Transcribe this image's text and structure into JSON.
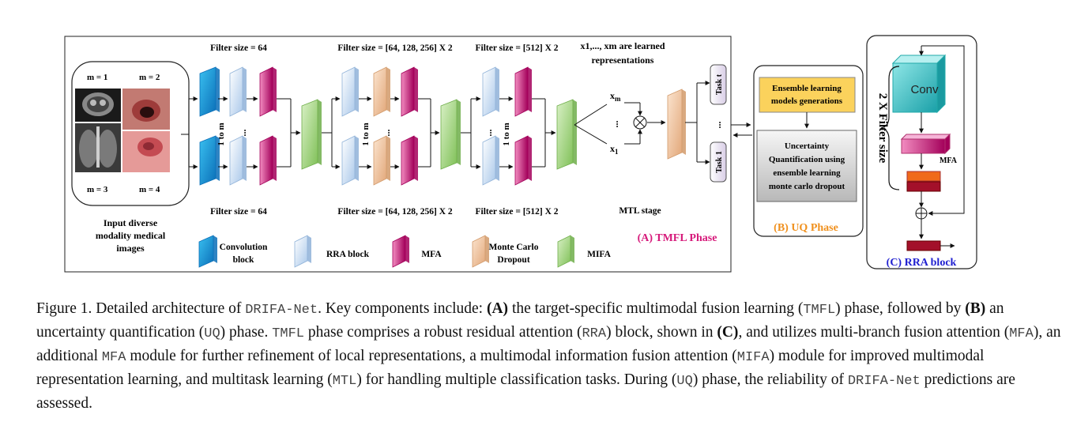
{
  "panel_a": {
    "filter_64_top": "Filter size = 64",
    "filter_64_bottom": "Filter size = 64",
    "filter_mid_top": "Filter size = [64, 128, 256] X 2",
    "filter_mid_bottom": "Filter size = [64, 128, 256] X 2",
    "filter_512_top": "Filter size = [512] X 2",
    "filter_512_bottom": "Filter size = [512] X 2",
    "learned_line1": "x1,..., xm are learned",
    "learned_line2": "representations",
    "xm": "xm",
    "x1": "x1",
    "dots": "...",
    "one_to_m": "1 to m",
    "task_t": "Task t",
    "task_1": "Task 1",
    "mtl_stage": "MTL stage",
    "title": "(A) TMFL Phase",
    "m1": "m = 1",
    "m2": "m = 2",
    "m3": "m = 3",
    "m4": "m = 4",
    "input_line1": "Input diverse",
    "input_line2": "modality medical",
    "input_line3": "images"
  },
  "legend": {
    "conv_line1": "Convolution",
    "conv_line2": "block",
    "rra": "RRA block",
    "mfa": "MFA",
    "mc_line1": "Monte Carlo",
    "mc_line2": "Dropout",
    "mifa": "MIFA"
  },
  "panel_b": {
    "ens_line1": "Ensemble learning",
    "ens_line2": "models generations",
    "uq_line1": "Uncertainty",
    "uq_line2": "Quantification using",
    "uq_line3": "ensemble learning",
    "uq_line4": "monte carlo dropout",
    "title": "(B) UQ Phase"
  },
  "panel_c": {
    "conv": "Conv",
    "mfa": "MFA",
    "filter": "2 X Filter size",
    "title": "(C) RRA block"
  },
  "colors": {
    "conv": "#1a8fd8",
    "rra": "#d6e6f6",
    "mfa": "#d6197a",
    "mc": "#f2cfae",
    "mifa": "#a9d98a",
    "title_a": "#d6197a",
    "title_b": "#f0901d",
    "title_c": "#2020d0"
  },
  "caption": {
    "fig": "Figure 1.  Detailed architecture of ",
    "name": "DRIFA-Net",
    "s1": ". Key components include: ",
    "a": "(A)",
    "s2": " the target-specific multimodal fusion learning (",
    "tmfl": "TMFL",
    "s3": ") phase, followed by ",
    "b": "(B)",
    "s4": " an uncertainty quantification (",
    "uq": "UQ",
    "s5": ") phase. ",
    "tmfl2": "TMFL",
    "s6": " phase comprises a robust residual attention (",
    "rra": "RRA",
    "s7": ") block, shown in ",
    "c": "(C)",
    "s8": ", and utilizes multi-branch fusion attention (",
    "mfa": "MFA",
    "s9": "), an additional ",
    "mfa2": "MFA",
    "s10": " module for further refinement of local representations, a multimodal information fusion attention (",
    "mifa": "MIFA",
    "s11": ") module for improved multimodal representation learning, and multitask learning (",
    "mtl": "MTL",
    "s12": ") for handling multiple classification tasks. During (",
    "uq2": "UQ",
    "s13": ") phase, the reliability of ",
    "name2": "DRIFA-Net",
    "s14": " predictions are assessed."
  }
}
